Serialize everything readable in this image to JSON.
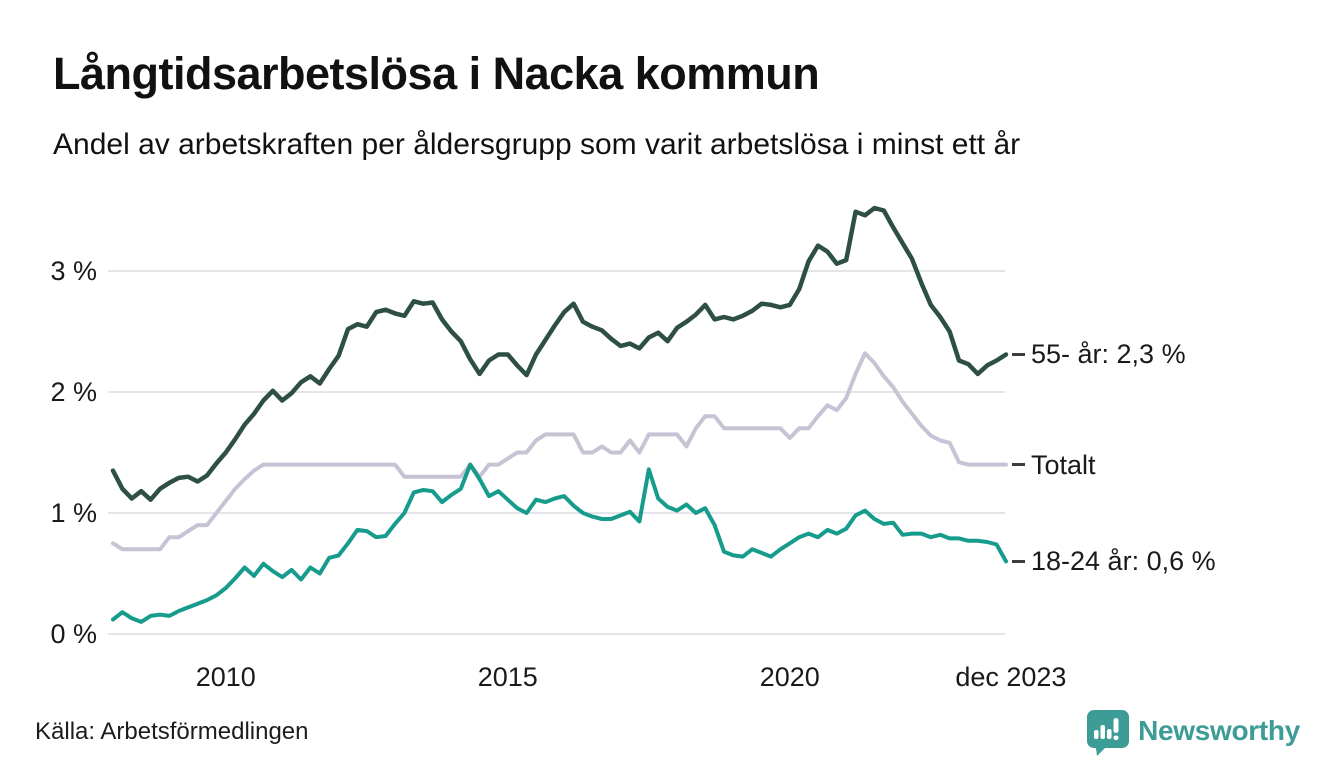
{
  "header": {
    "title": "Långtidsarbetslösa i Nacka kommun",
    "subtitle": "Andel av arbetskraften per åldersgrupp som varit arbetslösa i minst ett år"
  },
  "chart_data": {
    "type": "line",
    "title": "Långtidsarbetslösa i Nacka kommun",
    "subtitle": "Andel av arbetskraften per åldersgrupp som varit arbetslösa i minst ett år",
    "xlabel": "",
    "ylabel": "",
    "grid": true,
    "gridline_color": "#e5e4ea",
    "x_start_year": 2008.0,
    "x_step_years": 0.16667,
    "ylim": [
      0,
      3.7
    ],
    "y_ticks": [
      {
        "value": 0,
        "label": "0 %"
      },
      {
        "value": 1,
        "label": "1 %"
      },
      {
        "value": 2,
        "label": "2 %"
      },
      {
        "value": 3,
        "label": "3 %"
      }
    ],
    "x_ticks": [
      {
        "year": 2010,
        "label": "2010"
      },
      {
        "year": 2015,
        "label": "2015"
      },
      {
        "year": 2020,
        "label": "2020"
      },
      {
        "year": 2023.92,
        "label": "dec 2023"
      }
    ],
    "series": [
      {
        "name": "Totalt",
        "color": "#c6c3d4",
        "end_label": "Totalt",
        "end_value": 1.4,
        "values": [
          0.75,
          0.7,
          0.7,
          0.7,
          0.7,
          0.7,
          0.8,
          0.8,
          0.85,
          0.9,
          0.9,
          1.0,
          1.1,
          1.2,
          1.28,
          1.35,
          1.4,
          1.4,
          1.4,
          1.4,
          1.4,
          1.4,
          1.4,
          1.4,
          1.4,
          1.4,
          1.4,
          1.4,
          1.4,
          1.4,
          1.4,
          1.3,
          1.3,
          1.3,
          1.3,
          1.3,
          1.3,
          1.3,
          1.4,
          1.3,
          1.4,
          1.4,
          1.45,
          1.5,
          1.5,
          1.6,
          1.65,
          1.65,
          1.65,
          1.65,
          1.5,
          1.5,
          1.55,
          1.5,
          1.5,
          1.6,
          1.5,
          1.65,
          1.65,
          1.65,
          1.65,
          1.55,
          1.7,
          1.8,
          1.8,
          1.7,
          1.7,
          1.7,
          1.7,
          1.7,
          1.7,
          1.7,
          1.62,
          1.7,
          1.7,
          1.8,
          1.89,
          1.85,
          1.95,
          2.15,
          2.32,
          2.24,
          2.13,
          2.04,
          1.92,
          1.82,
          1.72,
          1.64,
          1.6,
          1.58,
          1.42,
          1.4,
          1.4,
          1.4,
          1.4,
          1.4
        ]
      },
      {
        "name": "18-24 år",
        "color": "#169b8c",
        "end_label": "18-24 år: 0,6 %",
        "end_value": 0.6,
        "values": [
          0.12,
          0.18,
          0.13,
          0.1,
          0.15,
          0.16,
          0.15,
          0.19,
          0.22,
          0.25,
          0.28,
          0.32,
          0.38,
          0.46,
          0.55,
          0.48,
          0.58,
          0.52,
          0.47,
          0.53,
          0.45,
          0.55,
          0.5,
          0.63,
          0.65,
          0.75,
          0.86,
          0.85,
          0.8,
          0.81,
          0.91,
          1.0,
          1.17,
          1.19,
          1.18,
          1.09,
          1.15,
          1.2,
          1.4,
          1.28,
          1.14,
          1.18,
          1.11,
          1.04,
          1.0,
          1.11,
          1.09,
          1.12,
          1.14,
          1.06,
          1.0,
          0.97,
          0.95,
          0.95,
          0.98,
          1.01,
          0.93,
          1.36,
          1.12,
          1.05,
          1.02,
          1.07,
          1.0,
          1.04,
          0.9,
          0.68,
          0.65,
          0.64,
          0.7,
          0.67,
          0.64,
          0.7,
          0.75,
          0.8,
          0.83,
          0.8,
          0.86,
          0.83,
          0.87,
          0.98,
          1.02,
          0.95,
          0.91,
          0.92,
          0.82,
          0.83,
          0.83,
          0.8,
          0.82,
          0.79,
          0.79,
          0.77,
          0.77,
          0.76,
          0.74,
          0.6
        ]
      },
      {
        "name": "55- år",
        "color": "#2e4f43",
        "end_label": "55- år: 2,3 %",
        "end_value": 2.3,
        "values": [
          1.35,
          1.2,
          1.12,
          1.18,
          1.11,
          1.2,
          1.25,
          1.29,
          1.3,
          1.26,
          1.31,
          1.41,
          1.5,
          1.61,
          1.73,
          1.82,
          1.93,
          2.01,
          1.93,
          1.99,
          2.08,
          2.13,
          2.07,
          2.19,
          2.3,
          2.52,
          2.56,
          2.54,
          2.66,
          2.68,
          2.65,
          2.63,
          2.75,
          2.73,
          2.74,
          2.6,
          2.5,
          2.42,
          2.27,
          2.15,
          2.26,
          2.31,
          2.31,
          2.22,
          2.14,
          2.31,
          2.43,
          2.55,
          2.66,
          2.73,
          2.58,
          2.54,
          2.51,
          2.44,
          2.38,
          2.4,
          2.36,
          2.45,
          2.49,
          2.42,
          2.53,
          2.58,
          2.64,
          2.72,
          2.6,
          2.62,
          2.6,
          2.63,
          2.67,
          2.73,
          2.72,
          2.7,
          2.72,
          2.85,
          3.08,
          3.21,
          3.16,
          3.06,
          3.09,
          3.49,
          3.46,
          3.52,
          3.5,
          3.36,
          3.23,
          3.1,
          2.9,
          2.72,
          2.62,
          2.5,
          2.26,
          2.23,
          2.15,
          2.22,
          2.26,
          2.31
        ]
      }
    ],
    "legend_position": "right-end-labels"
  },
  "footer": {
    "source": "Källa: Arbetsförmedlingen",
    "brand": "Newsworthy",
    "brand_color": "#3d9c95"
  }
}
